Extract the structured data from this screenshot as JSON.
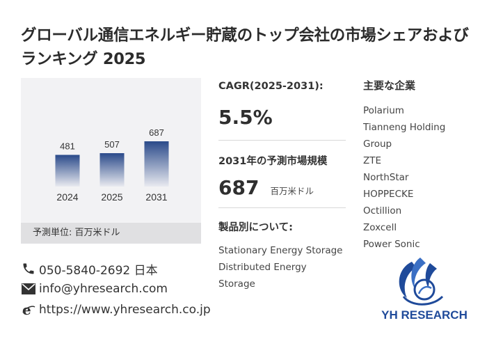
{
  "title": "グローバル通信エネルギー貯蔵のトップ会社の市場シェアおよびランキング 2025",
  "chart_data": {
    "type": "bar",
    "categories": [
      "2024",
      "2025",
      "2031"
    ],
    "values": [
      481,
      507,
      687
    ],
    "title": "",
    "xlabel": "",
    "ylabel": "",
    "ylim": [
      0,
      687
    ],
    "grid": false,
    "bar_color_top": "#2a4a8a",
    "bar_color_bottom": "#e9eaf0"
  },
  "chart_unit": "予測単位: 百万米ドル",
  "contacts": {
    "phone": "050-5840-2692 日本",
    "email": "info@yhresearch.com",
    "website": "https://www.yhresearch.co.jp"
  },
  "cagr": {
    "label": "CAGR(2025-2031):",
    "value": "5.5%"
  },
  "forecast": {
    "label": "2031年の予測市場規模",
    "value": "687",
    "unit": "百万米ドル"
  },
  "products": {
    "label": "製品別について:",
    "items": [
      "Stationary Energy Storage",
      "Distributed Energy Storage"
    ]
  },
  "companies": {
    "label": "主要な企業",
    "items": [
      "Polarium",
      "Tianneng Holding",
      "Group",
      "ZTE",
      "NorthStar",
      "HOPPECKE",
      "Octillion",
      "Zoxcell",
      "Power Sonic"
    ]
  },
  "logo": {
    "text": "YH RESEARCH",
    "color": "#1f4a9a"
  }
}
